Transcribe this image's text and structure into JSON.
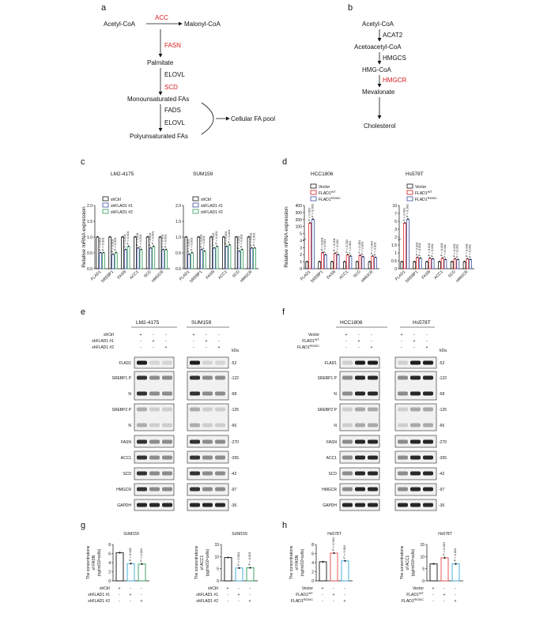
{
  "panels": {
    "a": {
      "letter": "a",
      "nodes": [
        "Acetyl-CoA",
        "Malonyl-CoA",
        "Palmitate",
        "Monounsaturated FAs",
        "Polyunsaturated FAs",
        "Cellular FA pool"
      ],
      "enzymes": [
        "ACC",
        "FASN",
        "ELOVL",
        "SCD",
        "FADS",
        "ELOVL"
      ]
    },
    "b": {
      "letter": "b",
      "nodes": [
        "Acetyl-CoA",
        "Acetoacetyl-CoA",
        "HMG-CoA",
        "Mevalonate",
        "Cholesterol"
      ],
      "enzymes": [
        "ACAT2",
        "HMGCS",
        "HMGCR"
      ]
    },
    "c": {
      "letter": "c",
      "ylabel": "Relative mRNA expression",
      "legend": [
        "shCtrl",
        "shFLAD1 #1",
        "shFLAD1 #2"
      ],
      "genes": [
        "FLAD1",
        "SREBP1",
        "FASN",
        "ACC1",
        "SCD",
        "HMGCR"
      ],
      "pval": "P < 0.001",
      "ticks": [
        "0.0",
        "0.5",
        "1.0",
        "1.5",
        "2.0"
      ]
    },
    "d": {
      "letter": "d",
      "ylabel": "Relative mRNA expression",
      "legend": [
        "Vector",
        "FLAD1",
        "FLAD1"
      ],
      "sup": [
        "WT",
        "R530C"
      ],
      "genes": [
        "FLAD1",
        "SREBP1",
        "FASN",
        "ACC1",
        "SCD",
        "HMGCR"
      ],
      "pval": "P < 0.001",
      "ticks_left": [
        "0",
        "1",
        "2",
        "3",
        "4",
        "5",
        "100",
        "200",
        "300",
        "400"
      ],
      "ticks_right": [
        "0",
        "0.5",
        "1",
        "1.5",
        "2",
        "3",
        "5",
        "7",
        "10"
      ]
    },
    "e": {
      "letter": "e",
      "rows": [
        "shCtrl",
        "shFLAD1 #1",
        "shFLAD1 #2"
      ],
      "signs": [
        [
          "+",
          "-",
          "-"
        ],
        [
          "-",
          "+",
          "-"
        ],
        [
          "-",
          "-",
          "+"
        ]
      ],
      "proteins": [
        "FLAD1",
        "SREBP1 P",
        "N",
        "SREBP2 P",
        "N",
        "FASN",
        "ACC1",
        "SCD",
        "HMGCR",
        "GAPDH"
      ],
      "kda": [
        "52",
        "122",
        "68",
        "125",
        "66",
        "270",
        "265",
        "42",
        "97",
        "36"
      ],
      "kda_label": "kDa"
    },
    "f": {
      "letter": "f",
      "rows": [
        "Vector",
        "FLAD1",
        "FLAD1"
      ],
      "sup": [
        "WT",
        "R530C"
      ],
      "signs": [
        [
          "+",
          "-",
          "-"
        ],
        [
          "-",
          "+",
          "-"
        ],
        [
          "-",
          "-",
          "+"
        ]
      ],
      "proteins": [
        "FLAD1",
        "SREBP1 P",
        "N",
        "SREBP2 P",
        "N",
        "FASN",
        "ACC1",
        "SCD",
        "HMGCR",
        "GAPDH"
      ],
      "kda": [
        "52",
        "122",
        "68",
        "125",
        "66",
        "270",
        "265",
        "42",
        "97",
        "36"
      ],
      "kda_label": "kDa"
    },
    "g": {
      "letter": "g",
      "rows": [
        "shCtrl",
        "shFLAD1 #1",
        "shFLAD1 #2"
      ],
      "signs": [
        [
          "+",
          "-",
          "-"
        ],
        [
          "-",
          "+",
          "-"
        ],
        [
          "-",
          "-",
          "+"
        ]
      ],
      "charts": [
        {
          "title": "SUM159",
          "ylabel": [
            "The concentrations",
            "of FASN",
            "(ng/ml/10⁶cells)"
          ],
          "ticks": [
            "0",
            "2",
            "4",
            "6",
            "8"
          ],
          "pvals": [
            "P = 0.002",
            "P < 0.001"
          ]
        },
        {
          "title": "SUM159",
          "ylabel": [
            "The concentrations",
            "of ACC1",
            "(pg/ml/10⁶cells)"
          ],
          "ticks": [
            "0",
            "5",
            "10",
            "15"
          ],
          "pvals": [
            "P < 0.001",
            "P < 0.001"
          ]
        }
      ]
    },
    "h": {
      "letter": "h",
      "rows": [
        "Vector",
        "FLAD1",
        "FLAD1"
      ],
      "sup": [
        "WT",
        "R530C"
      ],
      "signs": [
        [
          "+",
          "-",
          "-"
        ],
        [
          "-",
          "+",
          "-"
        ],
        [
          "-",
          "-",
          "+"
        ]
      ],
      "charts": [
        {
          "title": "Hs578T",
          "ylabel": [
            "The concentrations",
            "of FASN",
            "(ng/ml/10⁶cells)"
          ],
          "ticks": [
            "0",
            "2",
            "4",
            "6",
            "8"
          ],
          "pvals": [
            "P < 0.001",
            "P < 0.001"
          ]
        },
        {
          "title": "Hs578T",
          "ylabel": [
            "The concentrations",
            "of ACC1",
            "(pg/ml/10⁶cells)"
          ],
          "ticks": [
            "0",
            "5",
            "10",
            "15"
          ],
          "pvals": [
            "P < 0.001",
            "P < 0.001"
          ]
        }
      ]
    }
  },
  "chart_data": [
    {
      "type": "bar",
      "panel": "c",
      "title": "LM2-4175",
      "ylim": [
        0,
        2.0
      ],
      "categories": [
        "FLAD1",
        "SREBP1",
        "FASN",
        "ACC1",
        "SCD",
        "HMGCR"
      ],
      "series": [
        {
          "name": "shCtrl",
          "values": [
            1.0,
            1.0,
            1.0,
            1.0,
            1.0,
            1.0
          ]
        },
        {
          "name": "shFLAD1 #1",
          "values": [
            0.5,
            0.45,
            0.6,
            0.65,
            0.65,
            0.6
          ]
        },
        {
          "name": "shFLAD1 #2",
          "values": [
            0.5,
            0.5,
            0.7,
            0.6,
            0.7,
            0.6
          ]
        }
      ]
    },
    {
      "type": "bar",
      "panel": "c",
      "title": "SUM159",
      "ylim": [
        0,
        2.0
      ],
      "categories": [
        "FLAD1",
        "SREBP1",
        "FASN",
        "ACC1",
        "SCD",
        "HMGCR"
      ],
      "series": [
        {
          "name": "shCtrl",
          "values": [
            1.0,
            1.0,
            1.0,
            1.0,
            1.0,
            1.0
          ]
        },
        {
          "name": "shFLAD1 #1",
          "values": [
            0.45,
            0.6,
            0.65,
            0.7,
            0.55,
            0.65
          ]
        },
        {
          "name": "shFLAD1 #2",
          "values": [
            0.5,
            0.55,
            0.7,
            0.75,
            0.6,
            0.65
          ]
        }
      ]
    },
    {
      "type": "bar",
      "panel": "d",
      "title": "HCC1806",
      "categories": [
        "FLAD1",
        "SREBP1",
        "FASN",
        "ACC1",
        "SCD",
        "HMGCR"
      ],
      "series": [
        {
          "name": "Vector",
          "values": [
            1.0,
            1.0,
            1.0,
            1.0,
            1.0,
            1.0
          ]
        },
        {
          "name": "FLAD1 WT",
          "values": [
            300,
            2.3,
            2.2,
            2.0,
            1.9,
            1.8
          ]
        },
        {
          "name": "FLAD1 R530C",
          "values": [
            320,
            2.0,
            2.0,
            1.8,
            1.7,
            1.6
          ]
        }
      ]
    },
    {
      "type": "bar",
      "panel": "d",
      "title": "Hs578T",
      "categories": [
        "FLAD1",
        "SREBP1",
        "FASN",
        "ACC1",
        "SCD",
        "HMGCR"
      ],
      "series": [
        {
          "name": "Vector",
          "values": [
            1.0,
            1.0,
            1.0,
            1.0,
            1.0,
            1.0
          ]
        },
        {
          "name": "FLAD1 WT",
          "values": [
            6.0,
            1.6,
            1.5,
            1.5,
            1.4,
            1.4
          ]
        },
        {
          "name": "FLAD1 R530C",
          "values": [
            7.0,
            1.5,
            1.4,
            1.3,
            1.3,
            1.3
          ]
        }
      ]
    },
    {
      "type": "bar",
      "panel": "g",
      "title": "SUM159",
      "ylim": [
        0,
        8
      ],
      "categories": [
        "1",
        "2",
        "3"
      ],
      "values": [
        6.2,
        3.8,
        3.7
      ]
    },
    {
      "type": "bar",
      "panel": "g",
      "title": "SUM159",
      "ylim": [
        0,
        15
      ],
      "categories": [
        "1",
        "2",
        "3"
      ],
      "values": [
        9.6,
        5.3,
        5.4
      ]
    },
    {
      "type": "bar",
      "panel": "h",
      "title": "Hs578T",
      "ylim": [
        0,
        8
      ],
      "categories": [
        "1",
        "2",
        "3"
      ],
      "values": [
        4.2,
        6.1,
        4.4
      ]
    },
    {
      "type": "bar",
      "panel": "h",
      "title": "Hs578T",
      "ylim": [
        0,
        15
      ],
      "categories": [
        "1",
        "2",
        "3"
      ],
      "values": [
        7.0,
        9.5,
        7.0
      ]
    }
  ],
  "blots": {
    "e": {
      "lines": [
        "LM2-4175",
        "SUM159"
      ]
    },
    "f": {
      "lines": [
        "HCC1806",
        "Hs578T"
      ]
    }
  },
  "colors": {
    "red": "#d7191c",
    "blue": "#3a4fa0",
    "green": "#2e9a55",
    "lightblue": "#3aa8d8",
    "pink": "#e8474c"
  }
}
